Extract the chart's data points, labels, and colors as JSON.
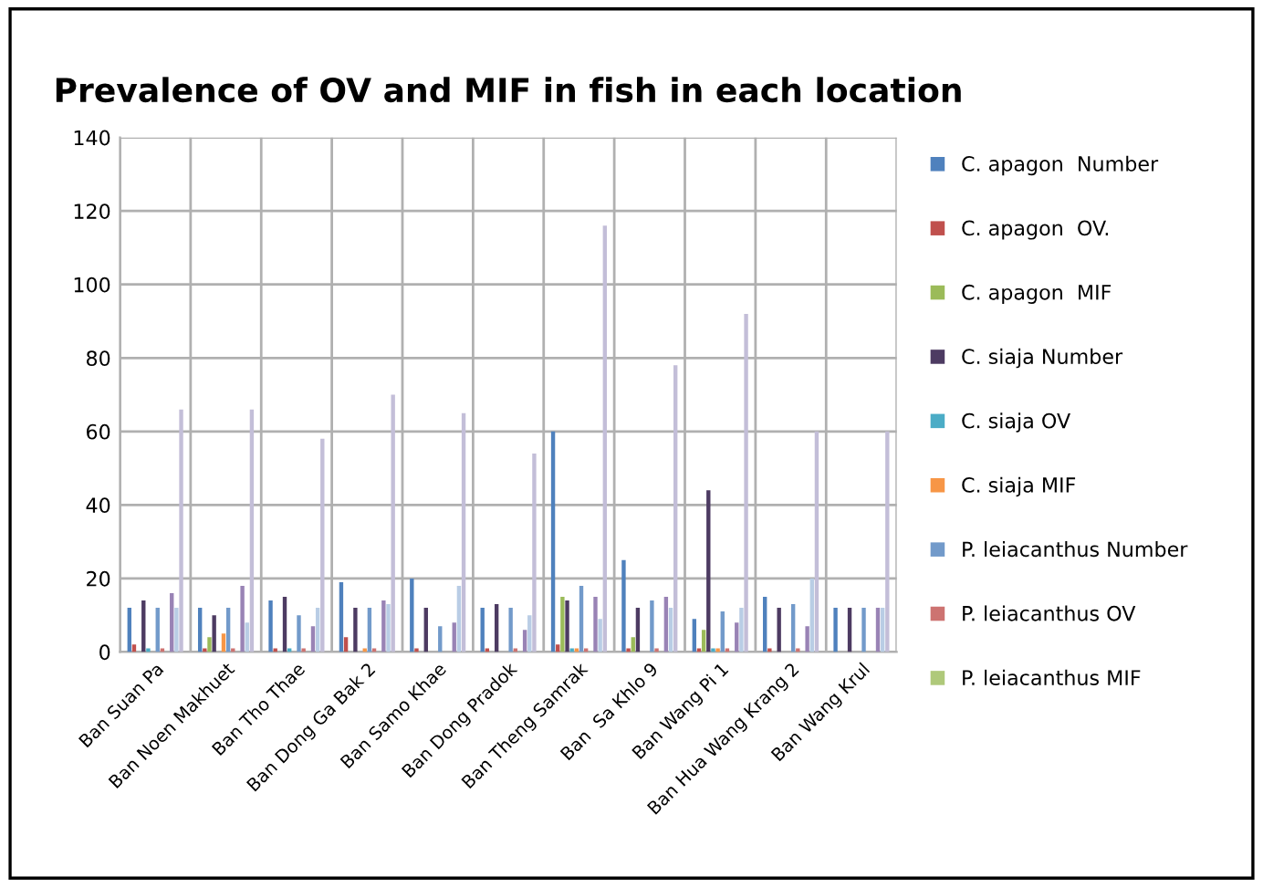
{
  "chart_data": {
    "type": "bar",
    "title": "Prevalence of OV and MIF in fish in each location",
    "categories": [
      "Ban Suan Pa",
      "Ban Noen Makhuet",
      "Ban Tho Thae",
      "Ban Dong Ga Bak 2",
      "Ban Samo Khae",
      "Ban Dong Pradok",
      "Ban Theng Samrak",
      "Ban  Sa Khlo 9",
      "Ban Wang Pi 1",
      "Ban Hua Wang Krang 2",
      "Ban Wang Krul"
    ],
    "series": [
      {
        "name": "C. apagon  Number",
        "color": "#4f81bd",
        "values": [
          12,
          12,
          14,
          19,
          20,
          12,
          60,
          25,
          9,
          15,
          12
        ]
      },
      {
        "name": "C. apagon  OV.",
        "color": "#c0504d",
        "values": [
          2,
          1,
          1,
          4,
          1,
          1,
          2,
          1,
          1,
          1,
          0
        ]
      },
      {
        "name": "C. apagon  MIF",
        "color": "#9bbb59",
        "values": [
          0,
          4,
          0,
          0,
          0,
          0,
          15,
          4,
          6,
          0,
          0
        ]
      },
      {
        "name": "C. siaja Number",
        "color": "#4d3b62",
        "values": [
          14,
          10,
          15,
          12,
          12,
          13,
          14,
          12,
          44,
          12,
          12
        ]
      },
      {
        "name": "C. siaja OV",
        "color": "#4bacc6",
        "values": [
          1,
          0,
          1,
          0,
          0,
          0,
          1,
          0,
          1,
          0,
          0
        ]
      },
      {
        "name": "C. siaja MIF",
        "color": "#f79646",
        "values": [
          0,
          5,
          0,
          1,
          0,
          0,
          1,
          0,
          1,
          0,
          0
        ]
      },
      {
        "name": "P. leiacanthus Number",
        "color": "#729aca",
        "values": [
          12,
          12,
          10,
          12,
          7,
          12,
          18,
          14,
          11,
          13,
          12
        ]
      },
      {
        "name": "P. leiacanthus OV",
        "color": "#cd7371",
        "values": [
          1,
          1,
          1,
          1,
          0,
          1,
          1,
          1,
          1,
          1,
          0
        ]
      },
      {
        "name": "P. leiacanthus MIF",
        "color": "#afc97a",
        "values": [
          0,
          0,
          0,
          0,
          0,
          0,
          0,
          0,
          0,
          0,
          0
        ]
      },
      {
        "color": "#9983b5",
        "values": [
          16,
          18,
          7,
          14,
          8,
          6,
          15,
          15,
          8,
          7,
          12
        ]
      },
      {
        "color": "#b9cde5",
        "values": [
          12,
          8,
          12,
          13,
          18,
          10,
          9,
          12,
          12,
          20,
          12
        ]
      },
      {
        "color": "#c3bed8",
        "values": [
          66,
          66,
          58,
          70,
          65,
          54,
          116,
          78,
          92,
          60,
          60
        ]
      }
    ],
    "ylim": [
      0,
      140
    ],
    "yticks": [
      0,
      20,
      40,
      60,
      80,
      100,
      120,
      140
    ],
    "grid": true,
    "legend": "right"
  }
}
